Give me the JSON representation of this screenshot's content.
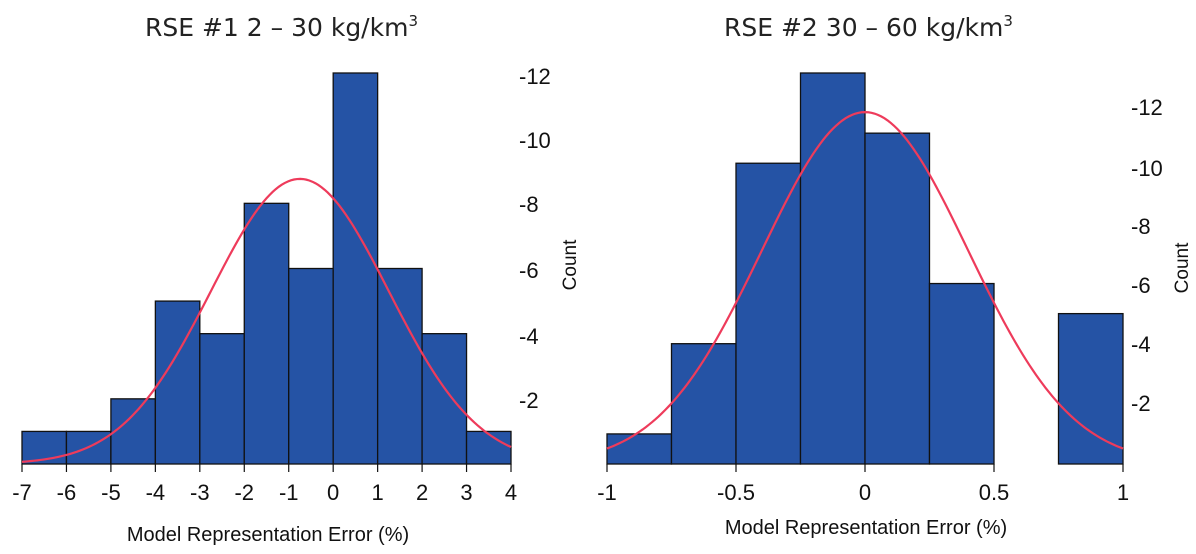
{
  "chart_data": [
    {
      "type": "bar",
      "title": "RSE #1  2 – 30 kg/km",
      "title_superscript": "3",
      "xlabel": "Model Representation Error (%)",
      "ylabel": "Count",
      "xlim": [
        -7,
        4
      ],
      "ylim": [
        0,
        12
      ],
      "x_ticks": [
        "-7",
        "-6",
        "-5",
        "-4",
        "-3",
        "-2",
        "-1",
        "0",
        "1",
        "2",
        "3",
        "4"
      ],
      "y_ticks": [
        "-2",
        "-4",
        "-6",
        "-8",
        "-10",
        "-12"
      ],
      "bins": [
        {
          "x0": -7,
          "x1": -6,
          "count": 1
        },
        {
          "x0": -6,
          "x1": -5,
          "count": 1
        },
        {
          "x0": -5,
          "x1": -4,
          "count": 2
        },
        {
          "x0": -4,
          "x1": -3,
          "count": 5
        },
        {
          "x0": -3,
          "x1": -2,
          "count": 4
        },
        {
          "x0": -2,
          "x1": -1,
          "count": 8
        },
        {
          "x0": -1,
          "x1": 0,
          "count": 6
        },
        {
          "x0": 0,
          "x1": 1,
          "count": 12
        },
        {
          "x0": 1,
          "x1": 2,
          "count": 6
        },
        {
          "x0": 2,
          "x1": 3,
          "count": 4
        },
        {
          "x0": 3,
          "x1": 4,
          "count": 1
        }
      ],
      "fit_curve": {
        "mean": -0.75,
        "sd": 2.0,
        "peak": 8.75
      },
      "bar_color": "#2553a5",
      "curve_color": "#ee3b5b"
    },
    {
      "type": "bar",
      "title": "RSE #2  30 – 60 kg/km",
      "title_superscript": "3",
      "xlabel": "Model Representation Error (%)",
      "ylabel": "Count",
      "xlim": [
        -1,
        1
      ],
      "ylim": [
        0,
        13
      ],
      "x_ticks": [
        "-1",
        "-0.5",
        "0",
        "0.5",
        "1"
      ],
      "y_ticks": [
        "-2",
        "-4",
        "-6",
        "-8",
        "-10",
        "-12"
      ],
      "bins": [
        {
          "x0": -1,
          "x1": -0.75,
          "count": 1
        },
        {
          "x0": -0.75,
          "x1": -0.5,
          "count": 4
        },
        {
          "x0": -0.5,
          "x1": -0.25,
          "count": 10
        },
        {
          "x0": -0.25,
          "x1": 0,
          "count": 13
        },
        {
          "x0": 0,
          "x1": 0.25,
          "count": 11
        },
        {
          "x0": 0.25,
          "x1": 0.5,
          "count": 6
        },
        {
          "x0": 0.5,
          "x1": 0.75,
          "count": 0
        },
        {
          "x0": 0.75,
          "x1": 1,
          "count": 5
        }
      ],
      "fit_curve": {
        "mean": 0.0,
        "sd": 0.4,
        "peak": 11.7
      },
      "bar_color": "#2553a5",
      "curve_color": "#ee3b5b"
    }
  ]
}
